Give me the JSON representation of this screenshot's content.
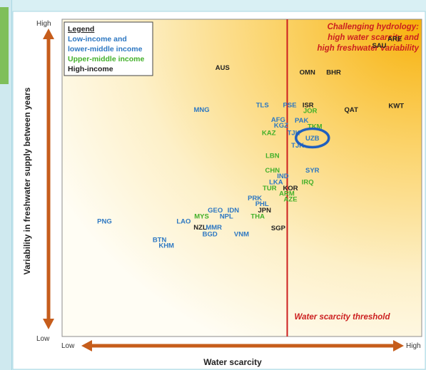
{
  "chart_data": {
    "type": "scatter",
    "xlabel": "Water scarcity",
    "ylabel": "Variability in freshwater supply between years",
    "x_tick_labels": [
      "Low",
      "High"
    ],
    "y_tick_labels": [
      "Low",
      "High"
    ],
    "xlim": [
      0,
      100
    ],
    "ylim": [
      0,
      100
    ],
    "threshold": {
      "x": 62.6,
      "label": "Water scarcity threshold",
      "color": "#cc1f1f"
    },
    "region_label": [
      "Challenging hydrology:",
      "high water scarcity and",
      "high freshwater variability"
    ],
    "legend": {
      "title": "Legend",
      "position": "top-left",
      "entries": [
        {
          "label_lines": [
            "Low-income and",
            "lower-middle income"
          ],
          "group": "low",
          "color": "#2e78c2"
        },
        {
          "label_lines": [
            "Upper-middle income"
          ],
          "group": "upper",
          "color": "#43b02a"
        },
        {
          "label_lines": [
            "High-income"
          ],
          "group": "high",
          "color": "#222222"
        }
      ]
    },
    "highlight": {
      "label": "UZB",
      "ring_color": "#1f5fbf"
    },
    "colors": {
      "low": "#2e78c2",
      "upper": "#43b02a",
      "high": "#222222"
    },
    "points": [
      {
        "label": "ARE",
        "x": 92.5,
        "y": 93.1,
        "group": "high"
      },
      {
        "label": "SAU",
        "x": 88.2,
        "y": 91.0,
        "group": "high"
      },
      {
        "label": "AUS",
        "x": 44.6,
        "y": 84.0,
        "group": "high"
      },
      {
        "label": "OMN",
        "x": 68.2,
        "y": 82.6,
        "group": "high"
      },
      {
        "label": "BHR",
        "x": 75.5,
        "y": 82.6,
        "group": "high"
      },
      {
        "label": "KWT",
        "x": 92.9,
        "y": 72.0,
        "group": "high"
      },
      {
        "label": "QAT",
        "x": 80.4,
        "y": 70.8,
        "group": "high"
      },
      {
        "label": "TLS",
        "x": 55.7,
        "y": 72.2,
        "group": "low"
      },
      {
        "label": "PSE",
        "x": 63.3,
        "y": 72.2,
        "group": "low"
      },
      {
        "label": "ISR",
        "x": 68.4,
        "y": 72.2,
        "group": "high"
      },
      {
        "label": "MNG",
        "x": 38.8,
        "y": 70.8,
        "group": "low"
      },
      {
        "label": "JOR",
        "x": 69.0,
        "y": 70.4,
        "group": "upper"
      },
      {
        "label": "AFG",
        "x": 60.1,
        "y": 67.6,
        "group": "low"
      },
      {
        "label": "PAK",
        "x": 66.6,
        "y": 67.4,
        "group": "low"
      },
      {
        "label": "KGZ",
        "x": 60.9,
        "y": 65.8,
        "group": "low"
      },
      {
        "label": "TKM",
        "x": 70.3,
        "y": 65.5,
        "group": "upper"
      },
      {
        "label": "KAZ",
        "x": 57.5,
        "y": 63.5,
        "group": "upper"
      },
      {
        "label": "TJK",
        "x": 64.4,
        "y": 63.5,
        "group": "low"
      },
      {
        "label": "UZB",
        "x": 69.6,
        "y": 61.8,
        "group": "low"
      },
      {
        "label": "TJK",
        "x": 65.5,
        "y": 59.6,
        "group": "low"
      },
      {
        "label": "LBN",
        "x": 58.5,
        "y": 56.3,
        "group": "upper"
      },
      {
        "label": "CHN",
        "x": 58.5,
        "y": 51.7,
        "group": "upper"
      },
      {
        "label": "SYR",
        "x": 69.6,
        "y": 51.7,
        "group": "low"
      },
      {
        "label": "IND",
        "x": 61.4,
        "y": 49.9,
        "group": "low"
      },
      {
        "label": "LKA",
        "x": 59.5,
        "y": 48.0,
        "group": "low"
      },
      {
        "label": "IRQ",
        "x": 68.3,
        "y": 48.0,
        "group": "upper"
      },
      {
        "label": "TUR",
        "x": 57.7,
        "y": 46.1,
        "group": "upper"
      },
      {
        "label": "KOR",
        "x": 63.5,
        "y": 46.1,
        "group": "high"
      },
      {
        "label": "ARM",
        "x": 62.5,
        "y": 44.4,
        "group": "upper"
      },
      {
        "label": "AZE",
        "x": 63.5,
        "y": 42.6,
        "group": "upper"
      },
      {
        "label": "PRK",
        "x": 53.6,
        "y": 42.9,
        "group": "low"
      },
      {
        "label": "PHL",
        "x": 55.6,
        "y": 41.1,
        "group": "low"
      },
      {
        "label": "JPN",
        "x": 56.3,
        "y": 39.1,
        "group": "high"
      },
      {
        "label": "GEO",
        "x": 42.6,
        "y": 39.1,
        "group": "low"
      },
      {
        "label": "IDN",
        "x": 47.6,
        "y": 39.1,
        "group": "low"
      },
      {
        "label": "MYS",
        "x": 38.8,
        "y": 37.2,
        "group": "upper"
      },
      {
        "label": "NPL",
        "x": 45.7,
        "y": 37.2,
        "group": "low"
      },
      {
        "label": "THA",
        "x": 54.4,
        "y": 37.2,
        "group": "upper"
      },
      {
        "label": "PNG",
        "x": 11.8,
        "y": 35.6,
        "group": "low"
      },
      {
        "label": "LAO",
        "x": 33.8,
        "y": 35.6,
        "group": "low"
      },
      {
        "label": "NZL",
        "x": 38.4,
        "y": 33.7,
        "group": "high"
      },
      {
        "label": "MMR",
        "x": 42.2,
        "y": 33.7,
        "group": "low"
      },
      {
        "label": "SGP",
        "x": 60.1,
        "y": 33.5,
        "group": "high"
      },
      {
        "label": "BGD",
        "x": 41.1,
        "y": 31.6,
        "group": "low"
      },
      {
        "label": "VNM",
        "x": 49.9,
        "y": 31.6,
        "group": "low"
      },
      {
        "label": "BTN",
        "x": 27.1,
        "y": 29.8,
        "group": "low"
      },
      {
        "label": "KHM",
        "x": 29.0,
        "y": 28.0,
        "group": "low"
      }
    ]
  }
}
